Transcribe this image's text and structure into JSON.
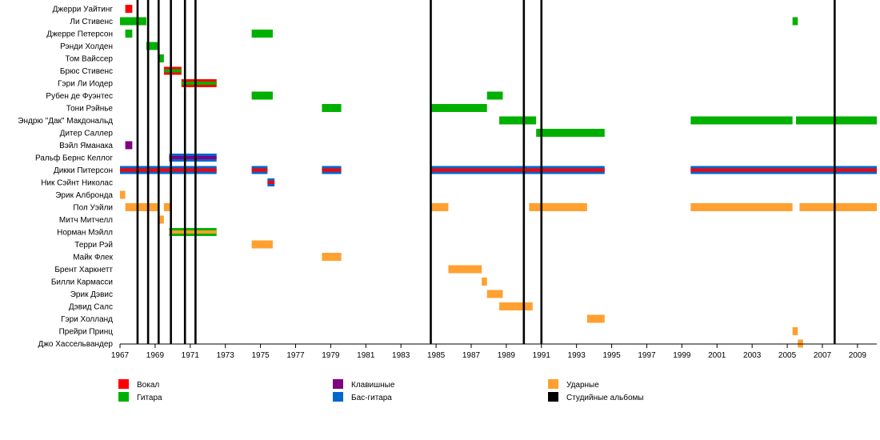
{
  "chart_data": {
    "type": "timeline",
    "title": "",
    "x_range": [
      1967,
      2010.1
    ],
    "x_ticks": [
      1967,
      1969,
      1971,
      1973,
      1975,
      1977,
      1979,
      1981,
      1983,
      1985,
      1987,
      1989,
      1991,
      1993,
      1995,
      1997,
      1999,
      2001,
      2003,
      2005,
      2007,
      2009
    ],
    "grid": false,
    "roles": [
      {
        "key": "vocal",
        "label": "Вокал",
        "color": "#ff0000"
      },
      {
        "key": "guitar",
        "label": "Гитара",
        "color": "#00b000"
      },
      {
        "key": "keys",
        "label": "Клавишные",
        "color": "#800080"
      },
      {
        "key": "bass",
        "label": "Бас-гитара",
        "color": "#0066cc"
      },
      {
        "key": "drums",
        "label": "Ударные",
        "color": "#ffa030"
      },
      {
        "key": "albums",
        "label": "Студийные альбомы",
        "color": "#000000"
      }
    ],
    "legend_placement": "bottom",
    "albums": [
      1968.0,
      1968.6,
      1969.2,
      1969.9,
      1970.7,
      1971.3,
      1984.7,
      1990.0,
      1991.0,
      2007.7
    ],
    "members": [
      {
        "name": "Джерри Уайтинг",
        "periods": [
          {
            "start": 1967.3,
            "end": 1967.7,
            "roles": [
              "vocal"
            ]
          }
        ]
      },
      {
        "name": "Ли Стивенс",
        "periods": [
          {
            "start": 1967.0,
            "end": 1968.5,
            "roles": [
              "guitar"
            ]
          },
          {
            "start": 2005.3,
            "end": 2005.6,
            "roles": [
              "guitar"
            ]
          }
        ]
      },
      {
        "name": "Джерре Петерсон",
        "periods": [
          {
            "start": 1967.3,
            "end": 1967.7,
            "roles": [
              "guitar"
            ]
          },
          {
            "start": 1974.5,
            "end": 1975.7,
            "roles": [
              "guitar"
            ]
          }
        ]
      },
      {
        "name": "Рэнди Холден",
        "periods": [
          {
            "start": 1968.5,
            "end": 1969.2,
            "roles": [
              "guitar"
            ]
          }
        ]
      },
      {
        "name": "Том Вайссер",
        "periods": [
          {
            "start": 1969.2,
            "end": 1969.5,
            "roles": [
              "guitar"
            ]
          }
        ]
      },
      {
        "name": "Брюс Стивенс",
        "periods": [
          {
            "start": 1969.5,
            "end": 1970.5,
            "roles": [
              "guitar",
              "vocal"
            ]
          }
        ]
      },
      {
        "name": "Гэри Ли Иодер",
        "periods": [
          {
            "start": 1970.5,
            "end": 1972.5,
            "roles": [
              "guitar",
              "vocal"
            ]
          }
        ]
      },
      {
        "name": "Рубен де Фуэнтес",
        "periods": [
          {
            "start": 1974.5,
            "end": 1975.7,
            "roles": [
              "guitar"
            ]
          },
          {
            "start": 1987.9,
            "end": 1988.8,
            "roles": [
              "guitar"
            ]
          }
        ]
      },
      {
        "name": "Тони Рэйнье",
        "periods": [
          {
            "start": 1978.5,
            "end": 1979.6,
            "roles": [
              "guitar"
            ]
          },
          {
            "start": 1984.7,
            "end": 1987.9,
            "roles": [
              "guitar"
            ]
          }
        ]
      },
      {
        "name": "Эндрю \"Дак\" Макдональд",
        "periods": [
          {
            "start": 1988.6,
            "end": 1990.7,
            "roles": [
              "guitar"
            ]
          },
          {
            "start": 1999.5,
            "end": 2005.3,
            "roles": [
              "guitar"
            ]
          },
          {
            "start": 2005.5,
            "end": 2010.1,
            "roles": [
              "guitar"
            ]
          }
        ]
      },
      {
        "name": "Дитер Саллер",
        "periods": [
          {
            "start": 1990.7,
            "end": 1994.6,
            "roles": [
              "guitar"
            ]
          }
        ]
      },
      {
        "name": "Вэйл Яманака",
        "periods": [
          {
            "start": 1967.3,
            "end": 1967.7,
            "roles": [
              "keys"
            ]
          }
        ]
      },
      {
        "name": "Ральф Бернс Келлог",
        "periods": [
          {
            "start": 1969.8,
            "end": 1972.5,
            "roles": [
              "keys",
              "bass"
            ]
          }
        ]
      },
      {
        "name": "Дикки Питерсон",
        "periods": [
          {
            "start": 1967.0,
            "end": 1972.5,
            "roles": [
              "vocal",
              "bass"
            ]
          },
          {
            "start": 1974.5,
            "end": 1975.4,
            "roles": [
              "vocal",
              "bass"
            ]
          },
          {
            "start": 1978.5,
            "end": 1979.6,
            "roles": [
              "vocal",
              "bass"
            ]
          },
          {
            "start": 1984.7,
            "end": 1994.6,
            "roles": [
              "vocal",
              "bass"
            ]
          },
          {
            "start": 1999.5,
            "end": 2010.1,
            "roles": [
              "vocal",
              "bass"
            ]
          }
        ]
      },
      {
        "name": "Ник Сэйнт Николас",
        "periods": [
          {
            "start": 1975.4,
            "end": 1975.8,
            "roles": [
              "vocal",
              "bass"
            ]
          }
        ]
      },
      {
        "name": "Эрик Албронда",
        "periods": [
          {
            "start": 1967.0,
            "end": 1967.3,
            "roles": [
              "drums"
            ]
          }
        ]
      },
      {
        "name": "Пол Уэйли",
        "periods": [
          {
            "start": 1967.3,
            "end": 1969.2,
            "roles": [
              "drums"
            ]
          },
          {
            "start": 1969.5,
            "end": 1969.9,
            "roles": [
              "drums"
            ]
          },
          {
            "start": 1984.7,
            "end": 1985.7,
            "roles": [
              "drums"
            ]
          },
          {
            "start": 1990.3,
            "end": 1993.6,
            "roles": [
              "drums"
            ]
          },
          {
            "start": 1999.5,
            "end": 2005.3,
            "roles": [
              "drums"
            ]
          },
          {
            "start": 2005.7,
            "end": 2010.1,
            "roles": [
              "drums"
            ]
          }
        ]
      },
      {
        "name": "Митч Митчелл",
        "periods": [
          {
            "start": 1969.2,
            "end": 1969.5,
            "roles": [
              "drums"
            ]
          }
        ]
      },
      {
        "name": "Норман Мэйлл",
        "periods": [
          {
            "start": 1969.8,
            "end": 1972.5,
            "roles": [
              "drums",
              "guitar"
            ]
          }
        ]
      },
      {
        "name": "Терри Рэй",
        "periods": [
          {
            "start": 1974.5,
            "end": 1975.7,
            "roles": [
              "drums"
            ]
          }
        ]
      },
      {
        "name": "Майк Флек",
        "periods": [
          {
            "start": 1978.5,
            "end": 1979.6,
            "roles": [
              "drums"
            ]
          }
        ]
      },
      {
        "name": "Брент Харкнетт",
        "periods": [
          {
            "start": 1985.7,
            "end": 1987.6,
            "roles": [
              "drums"
            ]
          }
        ]
      },
      {
        "name": "Билли Кармасси",
        "periods": [
          {
            "start": 1987.6,
            "end": 1987.9,
            "roles": [
              "drums"
            ]
          }
        ]
      },
      {
        "name": "Эрик Дэвис",
        "periods": [
          {
            "start": 1987.9,
            "end": 1988.8,
            "roles": [
              "drums"
            ]
          }
        ]
      },
      {
        "name": "Дэвид Салс",
        "periods": [
          {
            "start": 1988.6,
            "end": 1990.5,
            "roles": [
              "drums"
            ]
          }
        ]
      },
      {
        "name": "Гэри Холланд",
        "periods": [
          {
            "start": 1993.6,
            "end": 1994.6,
            "roles": [
              "drums"
            ]
          }
        ]
      },
      {
        "name": "Прейри Принц",
        "periods": [
          {
            "start": 2005.3,
            "end": 2005.6,
            "roles": [
              "drums"
            ]
          }
        ]
      },
      {
        "name": "Джо Хассельвандер",
        "periods": [
          {
            "start": 2005.6,
            "end": 2005.9,
            "roles": [
              "drums"
            ]
          }
        ]
      }
    ]
  }
}
